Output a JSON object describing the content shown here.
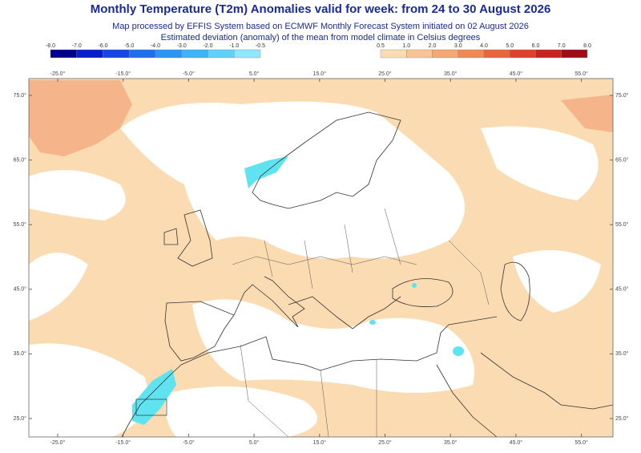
{
  "header": {
    "title": "Monthly Temperature (T2m) Anomalies valid for week: from 24 to 30 August 2026",
    "lines": [
      "Map processed by EFFIS System based on ECMWF Monthly Forecast System initiated on 02 August 2026",
      "Estimated deviation (anomaly) of the mean from model climate in Celsius degrees"
    ]
  },
  "colorbar": {
    "negative": {
      "labels": [
        "-8.0",
        "-7.0",
        "-6.0",
        "-5.0",
        "-4.0",
        "-3.0",
        "-2.0",
        "-1.0",
        "-0.5"
      ],
      "colors": [
        "#00008b",
        "#0a1fcc",
        "#1646e6",
        "#1e6ff0",
        "#2a95f5",
        "#3cb6f8",
        "#5fd2fb",
        "#8ee8fd"
      ]
    },
    "positive": {
      "labels": [
        "0.5",
        "1.0",
        "2.0",
        "3.0",
        "4.0",
        "5.0",
        "6.0",
        "7.0",
        "8.0"
      ],
      "colors": [
        "#fbdcb2",
        "#f8c495",
        "#f5a873",
        "#f08a55",
        "#e9663c",
        "#df412c",
        "#c9221f",
        "#a00d16"
      ]
    }
  },
  "map": {
    "lon_labels": [
      "-25.0°",
      "-15.0°",
      "-5.0°",
      "5.0°",
      "15.0°",
      "25.0°",
      "35.0°",
      "45.0°",
      "55.0°"
    ],
    "lat_labels": [
      "75.0°",
      "65.0°",
      "55.0°",
      "45.0°",
      "35.0°",
      "25.0°"
    ]
  }
}
